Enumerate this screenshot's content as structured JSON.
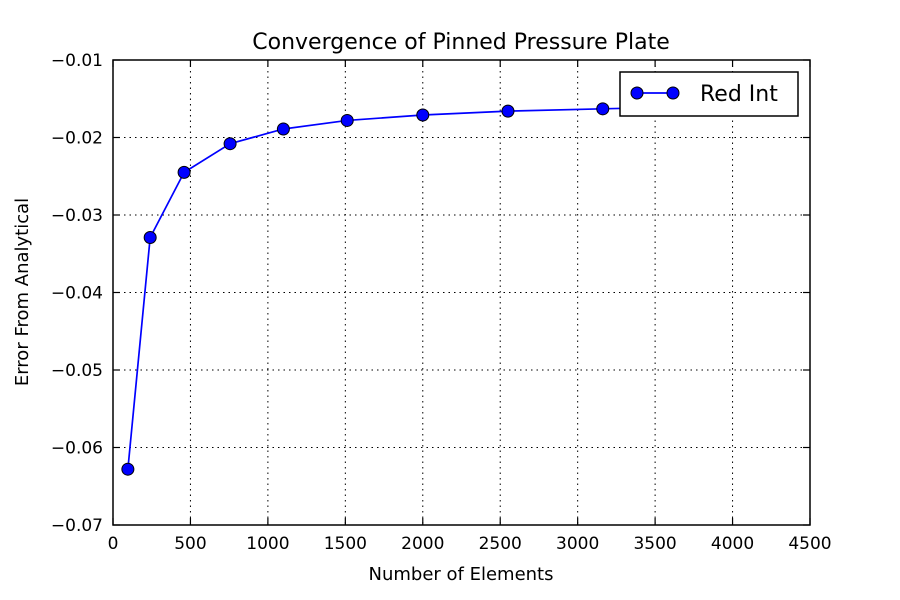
{
  "chart_data": {
    "type": "line",
    "title": "Convergence of Pinned Pressure Plate",
    "xlabel": "Number of Elements",
    "ylabel": "Error From Analytical",
    "xlim": [
      0,
      4500
    ],
    "ylim": [
      -0.07,
      -0.01
    ],
    "xticks": [
      0,
      500,
      1000,
      1500,
      2000,
      2500,
      3000,
      3500,
      4000,
      4500
    ],
    "xtick_labels": [
      "0",
      "500",
      "1000",
      "1500",
      "2000",
      "2500",
      "3000",
      "3500",
      "4000",
      "4500"
    ],
    "yticks": [
      -0.07,
      -0.06,
      -0.05,
      -0.04,
      -0.03,
      -0.02,
      -0.01
    ],
    "ytick_labels": [
      "−0.07",
      "−0.06",
      "−0.05",
      "−0.04",
      "−0.03",
      "−0.02",
      "−0.01"
    ],
    "grid": true,
    "legend_position": "top-right",
    "series": [
      {
        "name": "Red Int",
        "color": "#0000ff",
        "marker": "circle",
        "x": [
          96,
          240,
          459,
          756,
          1100,
          1512,
          2000,
          2550,
          3162,
          3600
        ],
        "y": [
          -0.0628,
          -0.0329,
          -0.0245,
          -0.0208,
          -0.0189,
          -0.0178,
          -0.0171,
          -0.0166,
          -0.0163,
          -0.0161
        ]
      }
    ]
  }
}
